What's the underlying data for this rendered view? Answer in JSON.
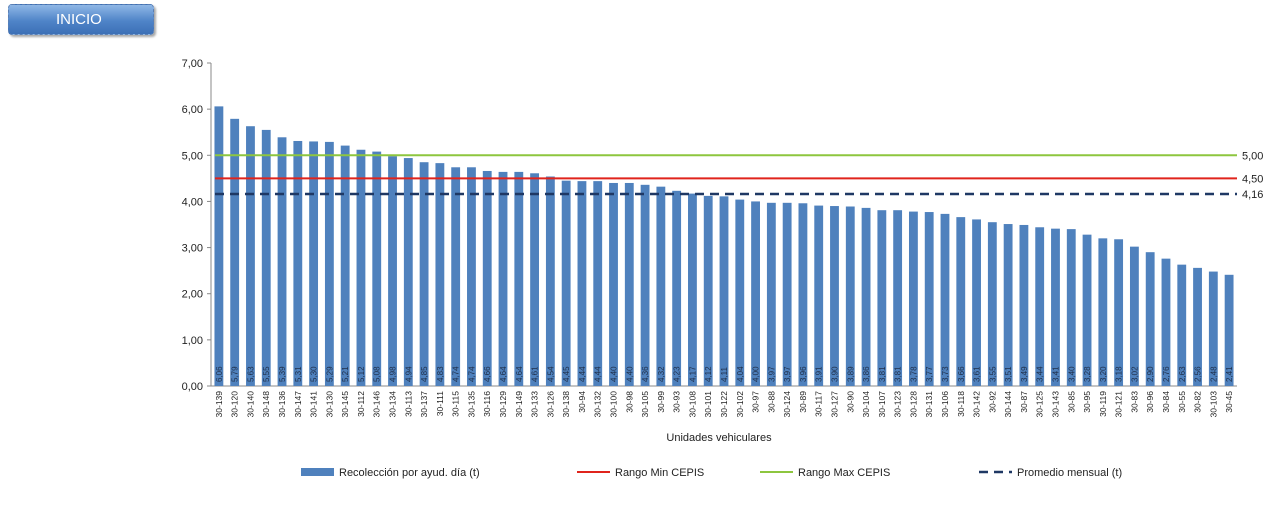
{
  "nav": {
    "inicio_label": "INICIO"
  },
  "chart_data": {
    "type": "bar",
    "xlabel": "Unidades vehiculares",
    "ylabel": "",
    "ylim": [
      0,
      7
    ],
    "yticks": [
      "0,00",
      "1,00",
      "2,00",
      "3,00",
      "4,00",
      "5,00",
      "6,00",
      "7,00"
    ],
    "categories": [
      "30-139",
      "30-120",
      "30-140",
      "30-148",
      "30-136",
      "30-147",
      "30-141",
      "30-130",
      "30-145",
      "30-112",
      "30-146",
      "30-134",
      "30-113",
      "30-137",
      "30-111",
      "30-115",
      "30-135",
      "30-116",
      "30-129",
      "30-149",
      "30-133",
      "30-126",
      "30-138",
      "30-94",
      "30-132",
      "30-100",
      "30-98",
      "30-105",
      "30-99",
      "30-93",
      "30-108",
      "30-101",
      "30-122",
      "30-102",
      "30-97",
      "30-88",
      "30-124",
      "30-89",
      "30-117",
      "30-127",
      "30-90",
      "30-104",
      "30-107",
      "30-123",
      "30-128",
      "30-131",
      "30-106",
      "30-118",
      "30-142",
      "30-92",
      "30-144",
      "30-87",
      "30-125",
      "30-143",
      "30-85",
      "30-95",
      "30-119",
      "30-121",
      "30-83",
      "30-96",
      "30-84",
      "30-55",
      "30-82",
      "30-103",
      "30-45"
    ],
    "series": [
      {
        "name": "Recolección por ayud. día (t)",
        "color": "#4f81bd",
        "values": [
          6.06,
          5.79,
          5.63,
          5.55,
          5.39,
          5.31,
          5.3,
          5.29,
          5.21,
          5.12,
          5.08,
          4.98,
          4.94,
          4.85,
          4.83,
          4.74,
          4.74,
          4.66,
          4.64,
          4.64,
          4.61,
          4.54,
          4.45,
          4.44,
          4.44,
          4.4,
          4.4,
          4.36,
          4.32,
          4.23,
          4.17,
          4.12,
          4.11,
          4.04,
          4.0,
          3.97,
          3.97,
          3.96,
          3.91,
          3.9,
          3.89,
          3.86,
          3.81,
          3.81,
          3.78,
          3.77,
          3.73,
          3.66,
          3.61,
          3.55,
          3.51,
          3.49,
          3.44,
          3.41,
          3.4,
          3.28,
          3.2,
          3.18,
          3.02,
          2.9,
          2.76,
          2.63,
          2.56,
          2.48,
          2.41
        ],
        "labels": [
          "6,06",
          "5,79",
          "5,63",
          "5,55",
          "5,39",
          "5,31",
          "5,30",
          "5,29",
          "5,21",
          "5,12",
          "5,08",
          "4,98",
          "4,94",
          "4,85",
          "4,83",
          "4,74",
          "4,74",
          "4,66",
          "4,64",
          "4,64",
          "4,61",
          "4,54",
          "4,45",
          "4,44",
          "4,44",
          "4,40",
          "4,40",
          "4,36",
          "4,32",
          "4,23",
          "4,17",
          "4,12",
          "4,11",
          "4,04",
          "4,00",
          "3,97",
          "3,97",
          "3,96",
          "3,91",
          "3,90",
          "3,89",
          "3,86",
          "3,81",
          "3,81",
          "3,78",
          "3,77",
          "3,73",
          "3,66",
          "3,61",
          "3,55",
          "3,51",
          "3,49",
          "3,44",
          "3,41",
          "3,40",
          "3,28",
          "3,20",
          "3,18",
          "3,02",
          "2,90",
          "2,76",
          "2,63",
          "2,56",
          "2,48",
          "2,41"
        ]
      }
    ],
    "reference_lines": [
      {
        "name": "Rango Min CEPIS",
        "value": 4.5,
        "label": "4,50",
        "color": "#e0241c",
        "style": "solid"
      },
      {
        "name": "Rango Max CEPIS",
        "value": 5.0,
        "label": "5,00",
        "color": "#8dc63f",
        "style": "solid"
      },
      {
        "name": "Promedio mensual (t)",
        "value": 4.16,
        "label": "4,16",
        "color": "#1f3864",
        "style": "dashed"
      }
    ],
    "legend": "bottom",
    "grid": false
  }
}
